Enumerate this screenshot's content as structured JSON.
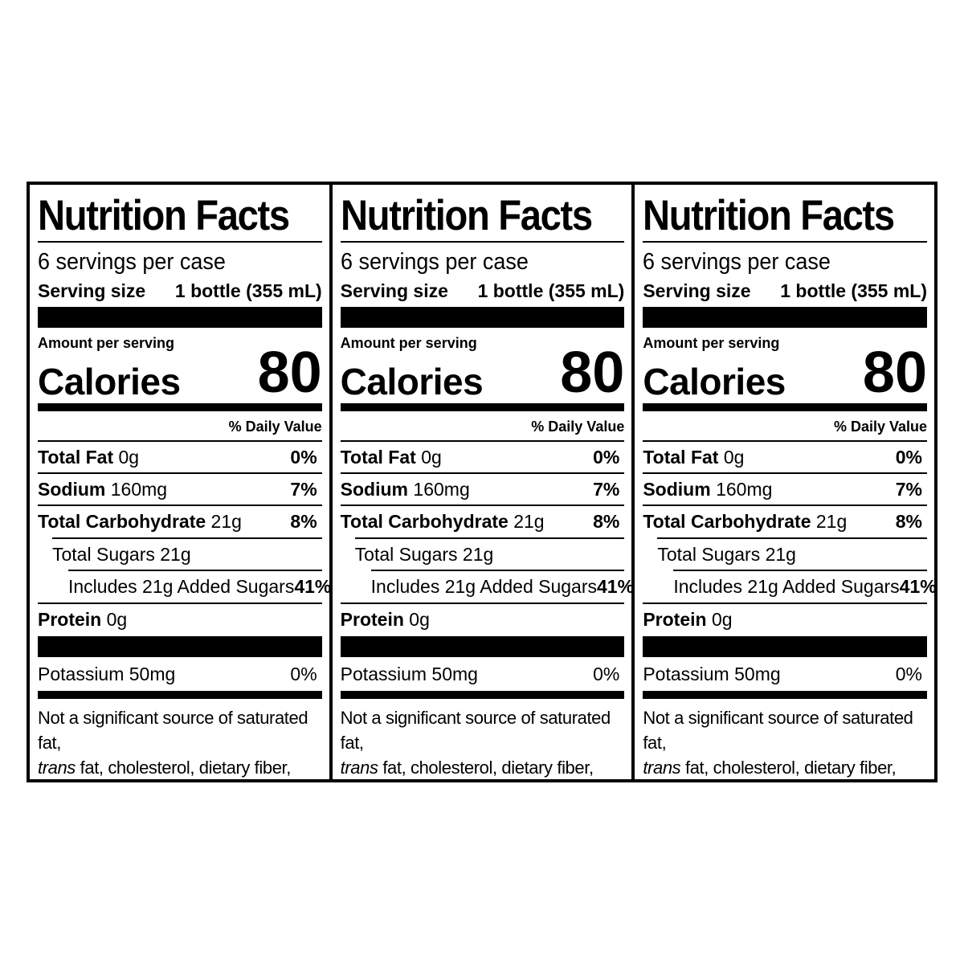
{
  "labels": [
    {
      "title": "Nutrition Facts",
      "servings_per": "6 servings per case",
      "serving_size_label": "Serving size",
      "serving_size_value": "1 bottle (355 mL)",
      "amount_per_serving": "Amount per serving",
      "calories_label": "Calories",
      "calories_value": "80",
      "daily_value_header": "% Daily Value",
      "nutrients": {
        "total_fat": {
          "name": "Total Fat",
          "amount": "0g",
          "dv": "0%"
        },
        "sodium": {
          "name": "Sodium",
          "amount": "160mg",
          "dv": "7%"
        },
        "total_carb": {
          "name": "Total Carbohydrate",
          "amount": "21g",
          "dv": "8%"
        },
        "total_sugars": {
          "name": "Total Sugars",
          "amount": "21g"
        },
        "added_sugars": {
          "name": "Includes 21g Added Sugars",
          "dv": "41%"
        },
        "protein": {
          "name": "Protein",
          "amount": "0g"
        },
        "potassium": {
          "name": "Potassium 50mg",
          "dv": "0%"
        }
      },
      "footnote_pre": "Not a significant source of saturated fat,",
      "footnote_italic": "trans",
      "footnote_post": "fat, cholesterol, dietary fiber, vitamin D, calcium, and iron."
    },
    {
      "title": "Nutrition Facts",
      "servings_per": "6 servings per case",
      "serving_size_label": "Serving size",
      "serving_size_value": "1 bottle (355 mL)",
      "amount_per_serving": "Amount per serving",
      "calories_label": "Calories",
      "calories_value": "80",
      "daily_value_header": "% Daily Value",
      "nutrients": {
        "total_fat": {
          "name": "Total Fat",
          "amount": "0g",
          "dv": "0%"
        },
        "sodium": {
          "name": "Sodium",
          "amount": "160mg",
          "dv": "7%"
        },
        "total_carb": {
          "name": "Total Carbohydrate",
          "amount": "21g",
          "dv": "8%"
        },
        "total_sugars": {
          "name": "Total Sugars",
          "amount": "21g"
        },
        "added_sugars": {
          "name": "Includes 21g Added Sugars",
          "dv": "41%"
        },
        "protein": {
          "name": "Protein",
          "amount": "0g"
        },
        "potassium": {
          "name": "Potassium 50mg",
          "dv": "0%"
        }
      },
      "footnote_pre": "Not a significant source of saturated fat,",
      "footnote_italic": "trans",
      "footnote_post": "fat, cholesterol, dietary fiber, vitamin D, calcium, and iron."
    },
    {
      "title": "Nutrition Facts",
      "servings_per": "6 servings per case",
      "serving_size_label": "Serving size",
      "serving_size_value": "1 bottle (355 mL)",
      "amount_per_serving": "Amount per serving",
      "calories_label": "Calories",
      "calories_value": "80",
      "daily_value_header": "% Daily Value",
      "nutrients": {
        "total_fat": {
          "name": "Total Fat",
          "amount": "0g",
          "dv": "0%"
        },
        "sodium": {
          "name": "Sodium",
          "amount": "160mg",
          "dv": "7%"
        },
        "total_carb": {
          "name": "Total Carbohydrate",
          "amount": "21g",
          "dv": "8%"
        },
        "total_sugars": {
          "name": "Total Sugars",
          "amount": "21g"
        },
        "added_sugars": {
          "name": "Includes 21g Added Sugars",
          "dv": "41%"
        },
        "protein": {
          "name": "Protein",
          "amount": "0g"
        },
        "potassium": {
          "name": "Potassium 50mg",
          "dv": "0%"
        }
      },
      "footnote_pre": "Not a significant source of saturated fat,",
      "footnote_italic": "trans",
      "footnote_post": "fat, cholesterol, dietary fiber, vitamin D, calcium, and iron."
    }
  ]
}
